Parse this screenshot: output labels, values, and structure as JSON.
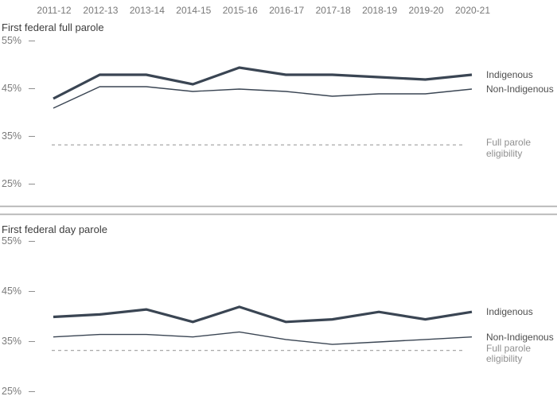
{
  "colors": {
    "series_line": "#3a4553",
    "reference_line": "#9e9e9e",
    "divider": "#b1b1b1",
    "title_text": "#3d3d3d",
    "axis_text": "#7b7b7b",
    "legend_text": "#4f4f4f",
    "reference_text": "#909090"
  },
  "chart_data": [
    {
      "type": "line",
      "title": "First federal full parole",
      "categories": [
        "2011-12",
        "2012-13",
        "2013-14",
        "2014-15",
        "2015-16",
        "2016-17",
        "2017-18",
        "2018-19",
        "2019-20",
        "2020-21"
      ],
      "series": [
        {
          "name": "Indigenous",
          "style": "bold",
          "values": [
            43,
            48,
            48,
            46,
            49.5,
            48,
            48,
            47.5,
            47,
            48
          ]
        },
        {
          "name": "Non-Indigenous",
          "style": "thin",
          "values": [
            41,
            45.5,
            45.5,
            44.5,
            45,
            44.5,
            43.5,
            44,
            44,
            45
          ]
        }
      ],
      "reference_line": {
        "name": "Full parole eligibility",
        "value": 33.3,
        "style": "dashed"
      },
      "yticks": [
        55,
        45,
        35,
        25
      ],
      "ytick_labels": [
        "55%",
        "45%",
        "35%",
        "25%"
      ],
      "ylim": [
        25,
        57
      ],
      "unit": "%",
      "legend_position": "right",
      "grid": false
    },
    {
      "type": "line",
      "title": "First federal day parole",
      "categories": [
        "2011-12",
        "2012-13",
        "2013-14",
        "2014-15",
        "2015-16",
        "2016-17",
        "2017-18",
        "2018-19",
        "2019-20",
        "2020-21"
      ],
      "series": [
        {
          "name": "Indigenous",
          "style": "bold",
          "values": [
            40,
            40.5,
            41.5,
            39,
            42,
            39,
            39.5,
            41,
            39.5,
            41
          ]
        },
        {
          "name": "Non-Indigenous",
          "style": "thin",
          "values": [
            36,
            36.5,
            36.5,
            36,
            37,
            35.5,
            34.5,
            35,
            35.5,
            36
          ]
        }
      ],
      "reference_line": {
        "name": "Full parole eligibility",
        "value": 33.3,
        "style": "dashed"
      },
      "yticks": [
        55,
        45,
        35,
        25
      ],
      "ytick_labels": [
        "55%",
        "45%",
        "35%",
        "25%"
      ],
      "ylim": [
        25,
        57
      ],
      "unit": "%",
      "legend_position": "right",
      "grid": false
    }
  ]
}
